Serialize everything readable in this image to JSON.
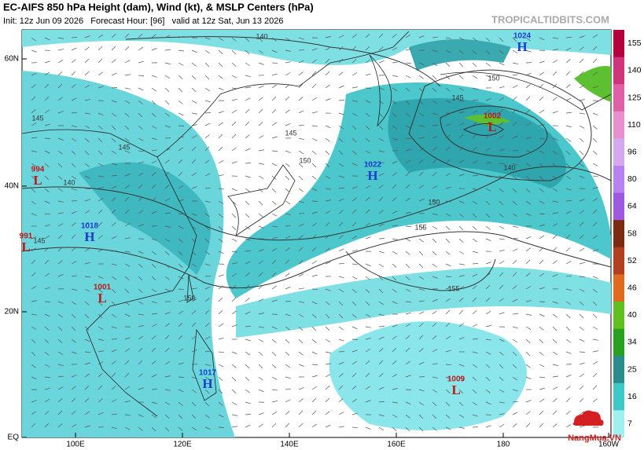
{
  "header": {
    "title": "EC-AIFS 850 hPa Height (dam), Wind (kt), & MSLP Centers (hPa)",
    "subtitle": "Init: 12z Jun 09 2026   Forecast Hour: [96]   valid at 12z Sat, Jun 13 2026",
    "site": "TROPICALTIDBITS.COM"
  },
  "axes": {
    "lat_labels": [
      "60N",
      "40N",
      "20N",
      "EQ"
    ],
    "lon_labels": [
      "100E",
      "120E",
      "140E",
      "160E",
      "180",
      "160W"
    ]
  },
  "centers": [
    {
      "pressure": "1024",
      "kind": "H"
    },
    {
      "pressure": "1002",
      "kind": "L"
    },
    {
      "pressure": "1022",
      "kind": "H"
    },
    {
      "pressure": "994",
      "kind": "L"
    },
    {
      "pressure": "1018",
      "kind": "H"
    },
    {
      "pressure": "991",
      "kind": "L"
    },
    {
      "pressure": "1001",
      "kind": "L"
    },
    {
      "pressure": "1017",
      "kind": "H"
    },
    {
      "pressure": "1009",
      "kind": "L"
    }
  ],
  "contour_labels": [
    "140",
    "150",
    "145",
    "140",
    "150",
    "155",
    "155",
    "150",
    "145",
    "145",
    "150",
    "140",
    "145",
    "145"
  ],
  "colorbar": {
    "ticks": [
      "155",
      "140",
      "125",
      "110",
      "96",
      "80",
      "64",
      "58",
      "52",
      "46",
      "40",
      "34",
      "25",
      "16",
      "7"
    ],
    "colors": [
      "#b4003c",
      "#d0347a",
      "#e060a8",
      "#e78fcf",
      "#d5a8f0",
      "#b882f0",
      "#9d5ae0",
      "#7a2b10",
      "#b04020",
      "#e06a20",
      "#60c020",
      "#2aa020",
      "#2a8c8c",
      "#3ec8c8",
      "#a0f0f0"
    ]
  },
  "watermark": "NangMua.VN"
}
